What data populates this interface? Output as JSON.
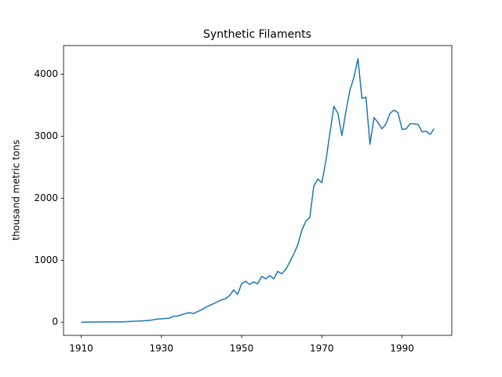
{
  "chart_data": {
    "type": "line",
    "title": "Synthetic Filaments",
    "ylabel": "thousand metric tons",
    "x": [
      1910,
      1911,
      1912,
      1913,
      1914,
      1915,
      1916,
      1917,
      1918,
      1919,
      1920,
      1921,
      1922,
      1923,
      1924,
      1925,
      1926,
      1927,
      1928,
      1929,
      1930,
      1931,
      1932,
      1933,
      1934,
      1935,
      1936,
      1937,
      1938,
      1939,
      1940,
      1941,
      1942,
      1943,
      1944,
      1945,
      1946,
      1947,
      1948,
      1949,
      1950,
      1951,
      1952,
      1953,
      1954,
      1955,
      1956,
      1957,
      1958,
      1959,
      1960,
      1961,
      1962,
      1963,
      1964,
      1965,
      1966,
      1967,
      1968,
      1969,
      1970,
      1971,
      1972,
      1973,
      1974,
      1975,
      1976,
      1977,
      1978,
      1979,
      1980,
      1981,
      1982,
      1983,
      1984,
      1985,
      1986,
      1987,
      1988,
      1989,
      1990,
      1991,
      1992,
      1993,
      1994,
      1995,
      1996,
      1997,
      1998
    ],
    "series": [
      {
        "color": "#1f77b4",
        "values": [
          0,
          1,
          2,
          3,
          3,
          4,
          4,
          4,
          4,
          5,
          5,
          8,
          11,
          15,
          17,
          21,
          25,
          30,
          40,
          50,
          55,
          60,
          65,
          95,
          100,
          120,
          140,
          155,
          140,
          170,
          200,
          240,
          270,
          300,
          330,
          360,
          380,
          430,
          520,
          450,
          620,
          660,
          610,
          650,
          620,
          740,
          700,
          750,
          700,
          820,
          780,
          850,
          970,
          1100,
          1250,
          1480,
          1630,
          1690,
          2200,
          2310,
          2250,
          2600,
          3050,
          3480,
          3370,
          3010,
          3400,
          3740,
          3950,
          4250,
          3610,
          3630,
          2870,
          3300,
          3220,
          3120,
          3200,
          3370,
          3420,
          3380,
          3110,
          3120,
          3200,
          3200,
          3190,
          3070,
          3080,
          3030,
          3120
        ]
      }
    ],
    "xlim": [
      1905.6,
      2002.4
    ],
    "ylim": [
      -212.5,
      4462.5
    ],
    "xticks": [
      1910,
      1930,
      1950,
      1970,
      1990
    ],
    "yticks": [
      0,
      1000,
      2000,
      3000,
      4000
    ]
  }
}
